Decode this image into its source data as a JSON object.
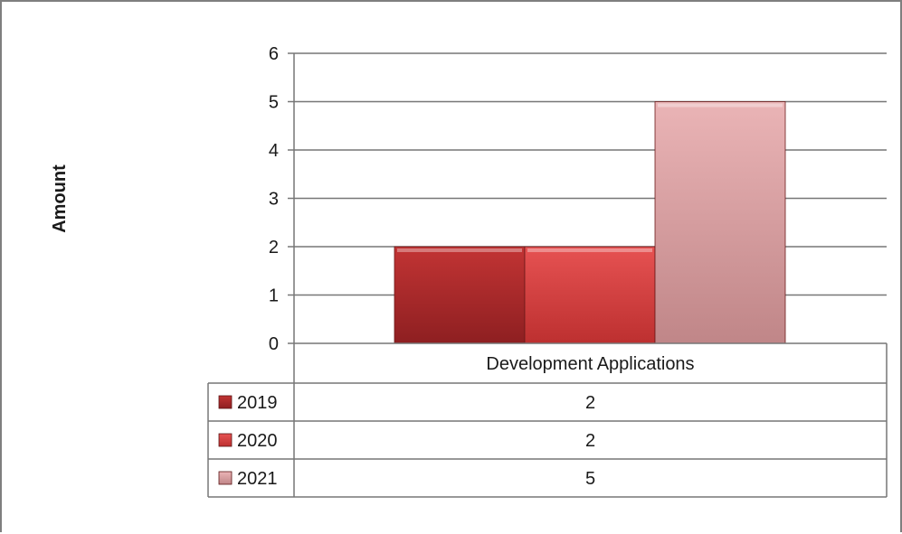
{
  "chart_data": {
    "type": "bar",
    "categories": [
      "Development Applications"
    ],
    "series": [
      {
        "name": "2019",
        "values": [
          2
        ],
        "color": "#a0282a"
      },
      {
        "name": "2020",
        "values": [
          2
        ],
        "color": "#d23c3c"
      },
      {
        "name": "2021",
        "values": [
          5
        ],
        "color": "#d8a0a2"
      }
    ],
    "title": "",
    "xlabel": "",
    "ylabel": "Amount",
    "ylim": [
      0,
      6
    ],
    "yticks": [
      0,
      1,
      2,
      3,
      4,
      5,
      6
    ],
    "grid": true,
    "legend": "data-table",
    "data_table": true
  }
}
